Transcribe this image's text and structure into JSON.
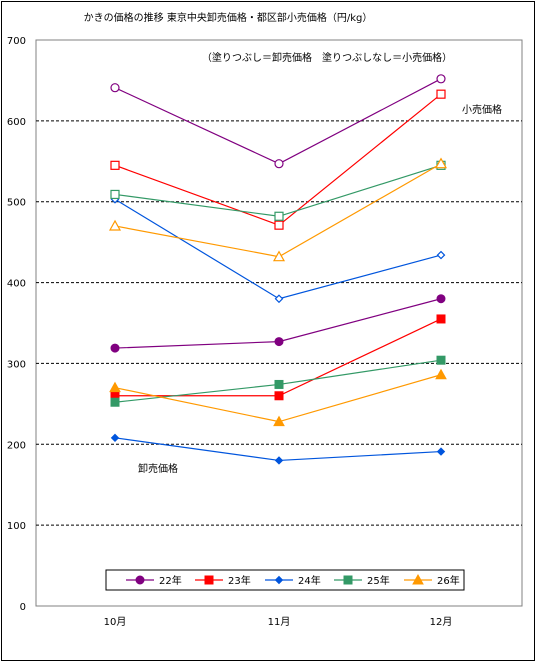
{
  "chart_data": {
    "type": "line",
    "title": "かきの価格の推移 東京中央卸売価格・都区部小売価格（円/kg）",
    "note": "（塗りつぶし＝卸売価格　塗りつぶしなし＝小売価格）",
    "label_retail": "小売価格",
    "label_wholesale": "卸売価格",
    "categories": [
      "10月",
      "11月",
      "12月"
    ],
    "ylim": [
      0,
      700
    ],
    "yticks": [
      "0",
      "100",
      "200",
      "300",
      "400",
      "500",
      "600",
      "700"
    ],
    "grid": "horizontal dashed",
    "legend_position": "bottom-center",
    "series": [
      {
        "name": "22年",
        "color": "#800080",
        "marker": "circle",
        "retail": [
          641,
          547,
          652
        ],
        "wholesale": [
          319,
          327,
          380
        ]
      },
      {
        "name": "23年",
        "color": "#ff0000",
        "marker": "square",
        "retail": [
          545,
          471,
          633
        ],
        "wholesale": [
          260,
          260,
          355
        ]
      },
      {
        "name": "24年",
        "color": "#0055dd",
        "marker": "diamond",
        "retail": [
          503,
          380,
          434
        ],
        "wholesale": [
          208,
          180,
          191
        ]
      },
      {
        "name": "25年",
        "color": "#339966",
        "marker": "square",
        "retail": [
          509,
          482,
          545
        ],
        "wholesale": [
          252,
          274,
          304
        ]
      },
      {
        "name": "26年",
        "color": "#ff9900",
        "marker": "triangle",
        "retail": [
          470,
          432,
          547
        ],
        "wholesale": [
          270,
          228,
          286
        ]
      }
    ]
  }
}
